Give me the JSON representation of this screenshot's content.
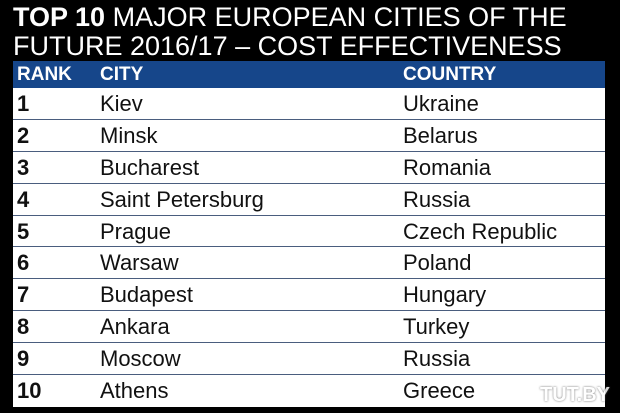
{
  "title": {
    "bold": "TOP 10",
    "rest_line1": " MAJOR EUROPEAN CITIES OF THE",
    "line2": "FUTURE 2016/17 – COST EFFECTIVENESS"
  },
  "table": {
    "headers": {
      "rank": "RANK",
      "city": "CITY",
      "country": "COUNTRY"
    },
    "header_color": "#16468a",
    "rows": [
      {
        "rank": "1",
        "city": "Kiev",
        "country": "Ukraine"
      },
      {
        "rank": "2",
        "city": "Minsk",
        "country": "Belarus"
      },
      {
        "rank": "3",
        "city": "Bucharest",
        "country": "Romania"
      },
      {
        "rank": "4",
        "city": "Saint Petersburg",
        "country": "Russia"
      },
      {
        "rank": "5",
        "city": "Prague",
        "country": "Czech Republic"
      },
      {
        "rank": "6",
        "city": "Warsaw",
        "country": "Poland"
      },
      {
        "rank": "7",
        "city": "Budapest",
        "country": "Hungary"
      },
      {
        "rank": "8",
        "city": "Ankara",
        "country": "Turkey"
      },
      {
        "rank": "9",
        "city": "Moscow",
        "country": "Russia"
      },
      {
        "rank": "10",
        "city": "Athens",
        "country": "Greece"
      }
    ]
  },
  "watermark": "TUT.BY"
}
